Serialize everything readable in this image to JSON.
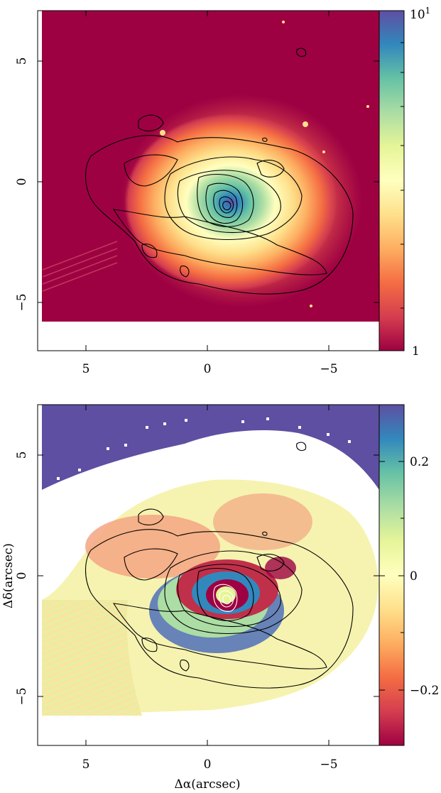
{
  "chart_data": [
    {
      "type": "heatmap",
      "panel": "top",
      "title": "",
      "xlabel": "",
      "ylabel": "",
      "xlim": [
        7,
        -7
      ],
      "ylim": [
        -7,
        7
      ],
      "x_ticks": [
        5,
        0,
        -5
      ],
      "x_tick_labels": [
        "5",
        "0",
        "−5"
      ],
      "y_ticks": [
        5,
        0,
        -5
      ],
      "y_tick_labels": [
        "5",
        "0",
        "−5"
      ],
      "colorbar": {
        "scale": "log",
        "range": [
          1,
          10
        ],
        "tick_labels": [
          "10¹",
          "1"
        ],
        "colormap": "Spectral"
      },
      "peak_position": [
        -0.8,
        -1.0
      ],
      "contours_overlaid": true
    },
    {
      "type": "heatmap",
      "panel": "bottom",
      "title": "",
      "xlabel": "Δα(arcsec)",
      "ylabel": "Δδ(arcsec)",
      "xlim": [
        7,
        -7
      ],
      "ylim": [
        -7,
        7
      ],
      "x_ticks": [
        5,
        0,
        -5
      ],
      "x_tick_labels": [
        "5",
        "0",
        "−5"
      ],
      "y_ticks": [
        5,
        0,
        -5
      ],
      "y_tick_labels": [
        "5",
        "0",
        "−5"
      ],
      "colorbar": {
        "scale": "linear",
        "range": [
          -0.3,
          0.3
        ],
        "ticks": [
          0.2,
          0,
          -0.2
        ],
        "tick_labels": [
          "0.2",
          "0",
          "−0.2"
        ],
        "colormap": "Spectral"
      },
      "contours_overlaid": true
    }
  ],
  "colors": {
    "cmap_low": "#9e0142",
    "cmap_mid": "#ffffbf",
    "cmap_high": "#5e4fa2",
    "contour": "#000000"
  }
}
